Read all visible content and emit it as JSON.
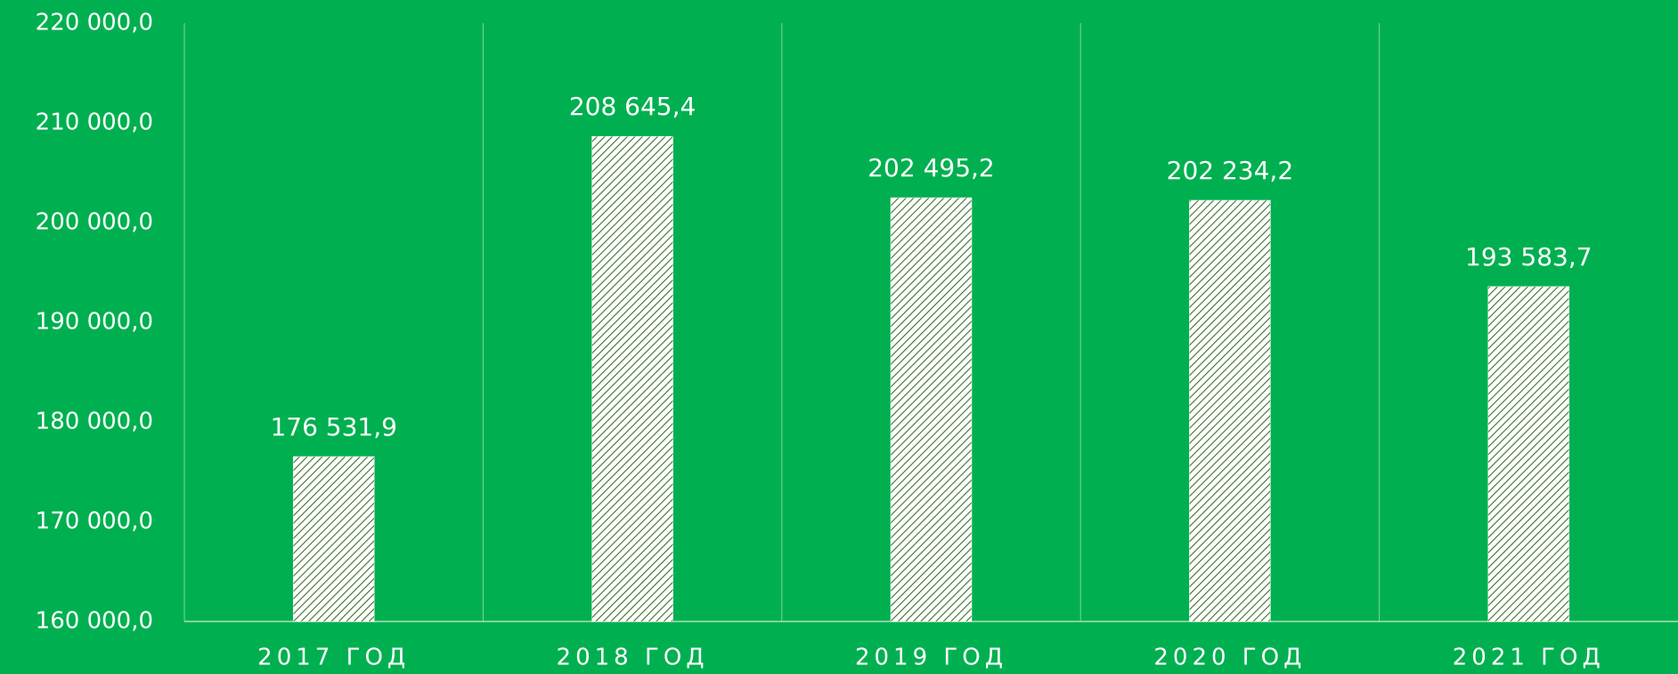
{
  "chart_data": {
    "type": "bar",
    "categories": [
      "2017 ГОД",
      "2018 ГОД",
      "2019 ГОД",
      "2020 ГОД",
      "2021 ГОД"
    ],
    "values": [
      176531.9,
      208645.4,
      202495.2,
      202234.2,
      193583.7
    ],
    "value_labels": [
      "176 531,9",
      "208 645,4",
      "202 495,2",
      "202 234,2",
      "193 583,7"
    ],
    "color": "#ffffff",
    "ylim": [
      160000,
      220000
    ],
    "yticks": [
      {
        "value": 160000,
        "label": "160 000,0"
      },
      {
        "value": 170000,
        "label": "170 000,0"
      },
      {
        "value": 180000,
        "label": "180 000,0"
      },
      {
        "value": 190000,
        "label": "190 000,0"
      },
      {
        "value": 200000,
        "label": "200 000,0"
      },
      {
        "value": 210000,
        "label": "210 000,0"
      },
      {
        "value": 220000,
        "label": "220 000,0"
      }
    ],
    "grid": false
  }
}
